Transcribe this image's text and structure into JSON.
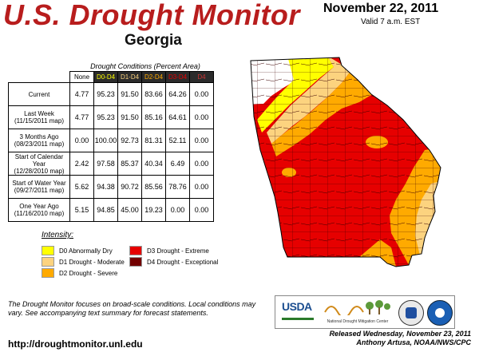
{
  "header": {
    "title": "U.S. Drought Monitor",
    "subtitle": "Georgia",
    "date": "November 22, 2011",
    "valid": "Valid 7 a.m. EST"
  },
  "table": {
    "caption": "Drought Conditions (Percent Area)",
    "columns": [
      "None",
      "D0-D4",
      "D1-D4",
      "D2-D4",
      "D3-D4",
      "D4"
    ],
    "column_colors": [
      "#000000",
      "#ffff00",
      "#fcd37f",
      "#ffaa00",
      "#e60000",
      "#cc3333"
    ],
    "rows": [
      {
        "label_line1": "Current",
        "label_line2": "",
        "values": [
          "4.77",
          "95.23",
          "91.50",
          "83.66",
          "64.26",
          "0.00"
        ]
      },
      {
        "label_line1": "Last Week",
        "label_line2": "(11/15/2011 map)",
        "values": [
          "4.77",
          "95.23",
          "91.50",
          "85.16",
          "64.61",
          "0.00"
        ]
      },
      {
        "label_line1": "3 Months Ago",
        "label_line2": "(08/23/2011 map)",
        "values": [
          "0.00",
          "100.00",
          "92.73",
          "81.31",
          "52.11",
          "0.00"
        ]
      },
      {
        "label_line1": "Start of Calendar Year",
        "label_line2": "(12/28/2010 map)",
        "values": [
          "2.42",
          "97.58",
          "85.37",
          "40.34",
          "6.49",
          "0.00"
        ]
      },
      {
        "label_line1": "Start of Water Year",
        "label_line2": "(09/27/2011 map)",
        "values": [
          "5.62",
          "94.38",
          "90.72",
          "85.56",
          "78.76",
          "0.00"
        ]
      },
      {
        "label_line1": "One Year Ago",
        "label_line2": "(11/16/2010 map)",
        "values": [
          "5.15",
          "94.85",
          "45.00",
          "19.23",
          "0.00",
          "0.00"
        ]
      }
    ]
  },
  "legend": {
    "title": "Intensity:",
    "items": [
      {
        "label": "D0 Abnormally Dry",
        "color": "#ffff00"
      },
      {
        "label": "D1 Drought - Moderate",
        "color": "#fcd37f"
      },
      {
        "label": "D2 Drought - Severe",
        "color": "#ffaa00"
      },
      {
        "label": "D3 Drought - Extreme",
        "color": "#e60000"
      },
      {
        "label": "D4 Drought - Exceptional",
        "color": "#730000"
      }
    ]
  },
  "footer": {
    "note": "The Drought Monitor focuses on broad-scale conditions. Local conditions may vary. See accompanying text summary for forecast statements.",
    "url": "http://droughtmonitor.unl.edu",
    "released": "Released Wednesday, November 23, 2011",
    "author": "Anthony Artusa, NOAA/NWS/CPC",
    "logo_usda": "USDA",
    "logo_ndmc": "National Drought Mitigation Center"
  }
}
